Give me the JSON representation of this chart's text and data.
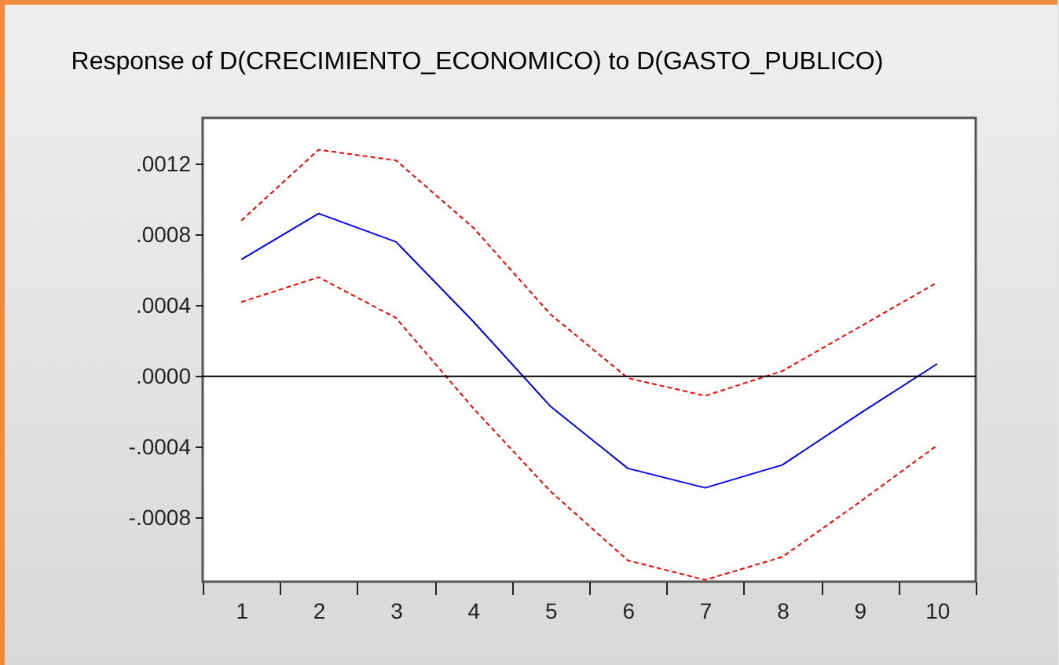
{
  "chart_data": {
    "type": "line",
    "title": "Response of D(CRECIMIENTO_ECONOMICO) to D(GASTO_PUBLICO)",
    "categories": [
      "1",
      "2",
      "3",
      "4",
      "5",
      "6",
      "7",
      "8",
      "9",
      "10"
    ],
    "series": [
      {
        "color": "#0000ff",
        "line_style": "solid",
        "values": [
          0.00066,
          0.00092,
          0.00076,
          0.00031,
          -0.00017,
          -0.00052,
          -0.00063,
          -0.0005,
          -0.00021,
          7e-05
        ]
      },
      {
        "color": "#ff0000",
        "line_style": "dashed",
        "values": [
          0.00088,
          0.00128,
          0.00122,
          0.00084,
          0.00035,
          -1e-05,
          -0.00011,
          3e-05,
          0.00028,
          0.00053
        ]
      },
      {
        "color": "#ff0000",
        "line_style": "dashed",
        "values": [
          0.00042,
          0.00056,
          0.00033,
          -0.00018,
          -0.00065,
          -0.00104,
          -0.00115,
          -0.00102,
          -0.00071,
          -0.00039
        ]
      }
    ],
    "ylim": [
      -0.00116,
      0.00146
    ],
    "yticks": [
      {
        "value": -0.0008,
        "label": "-.0008"
      },
      {
        "value": -0.0004,
        "label": "-.0004"
      },
      {
        "value": 0,
        "label": ".0000"
      },
      {
        "value": 0.0004,
        "label": ".0004"
      },
      {
        "value": 0.0008,
        "label": ".0008"
      },
      {
        "value": 0.0012,
        "label": ".0012"
      }
    ],
    "ref_lines": [
      {
        "axis": "y",
        "value": 0,
        "color": "#000000"
      }
    ]
  }
}
